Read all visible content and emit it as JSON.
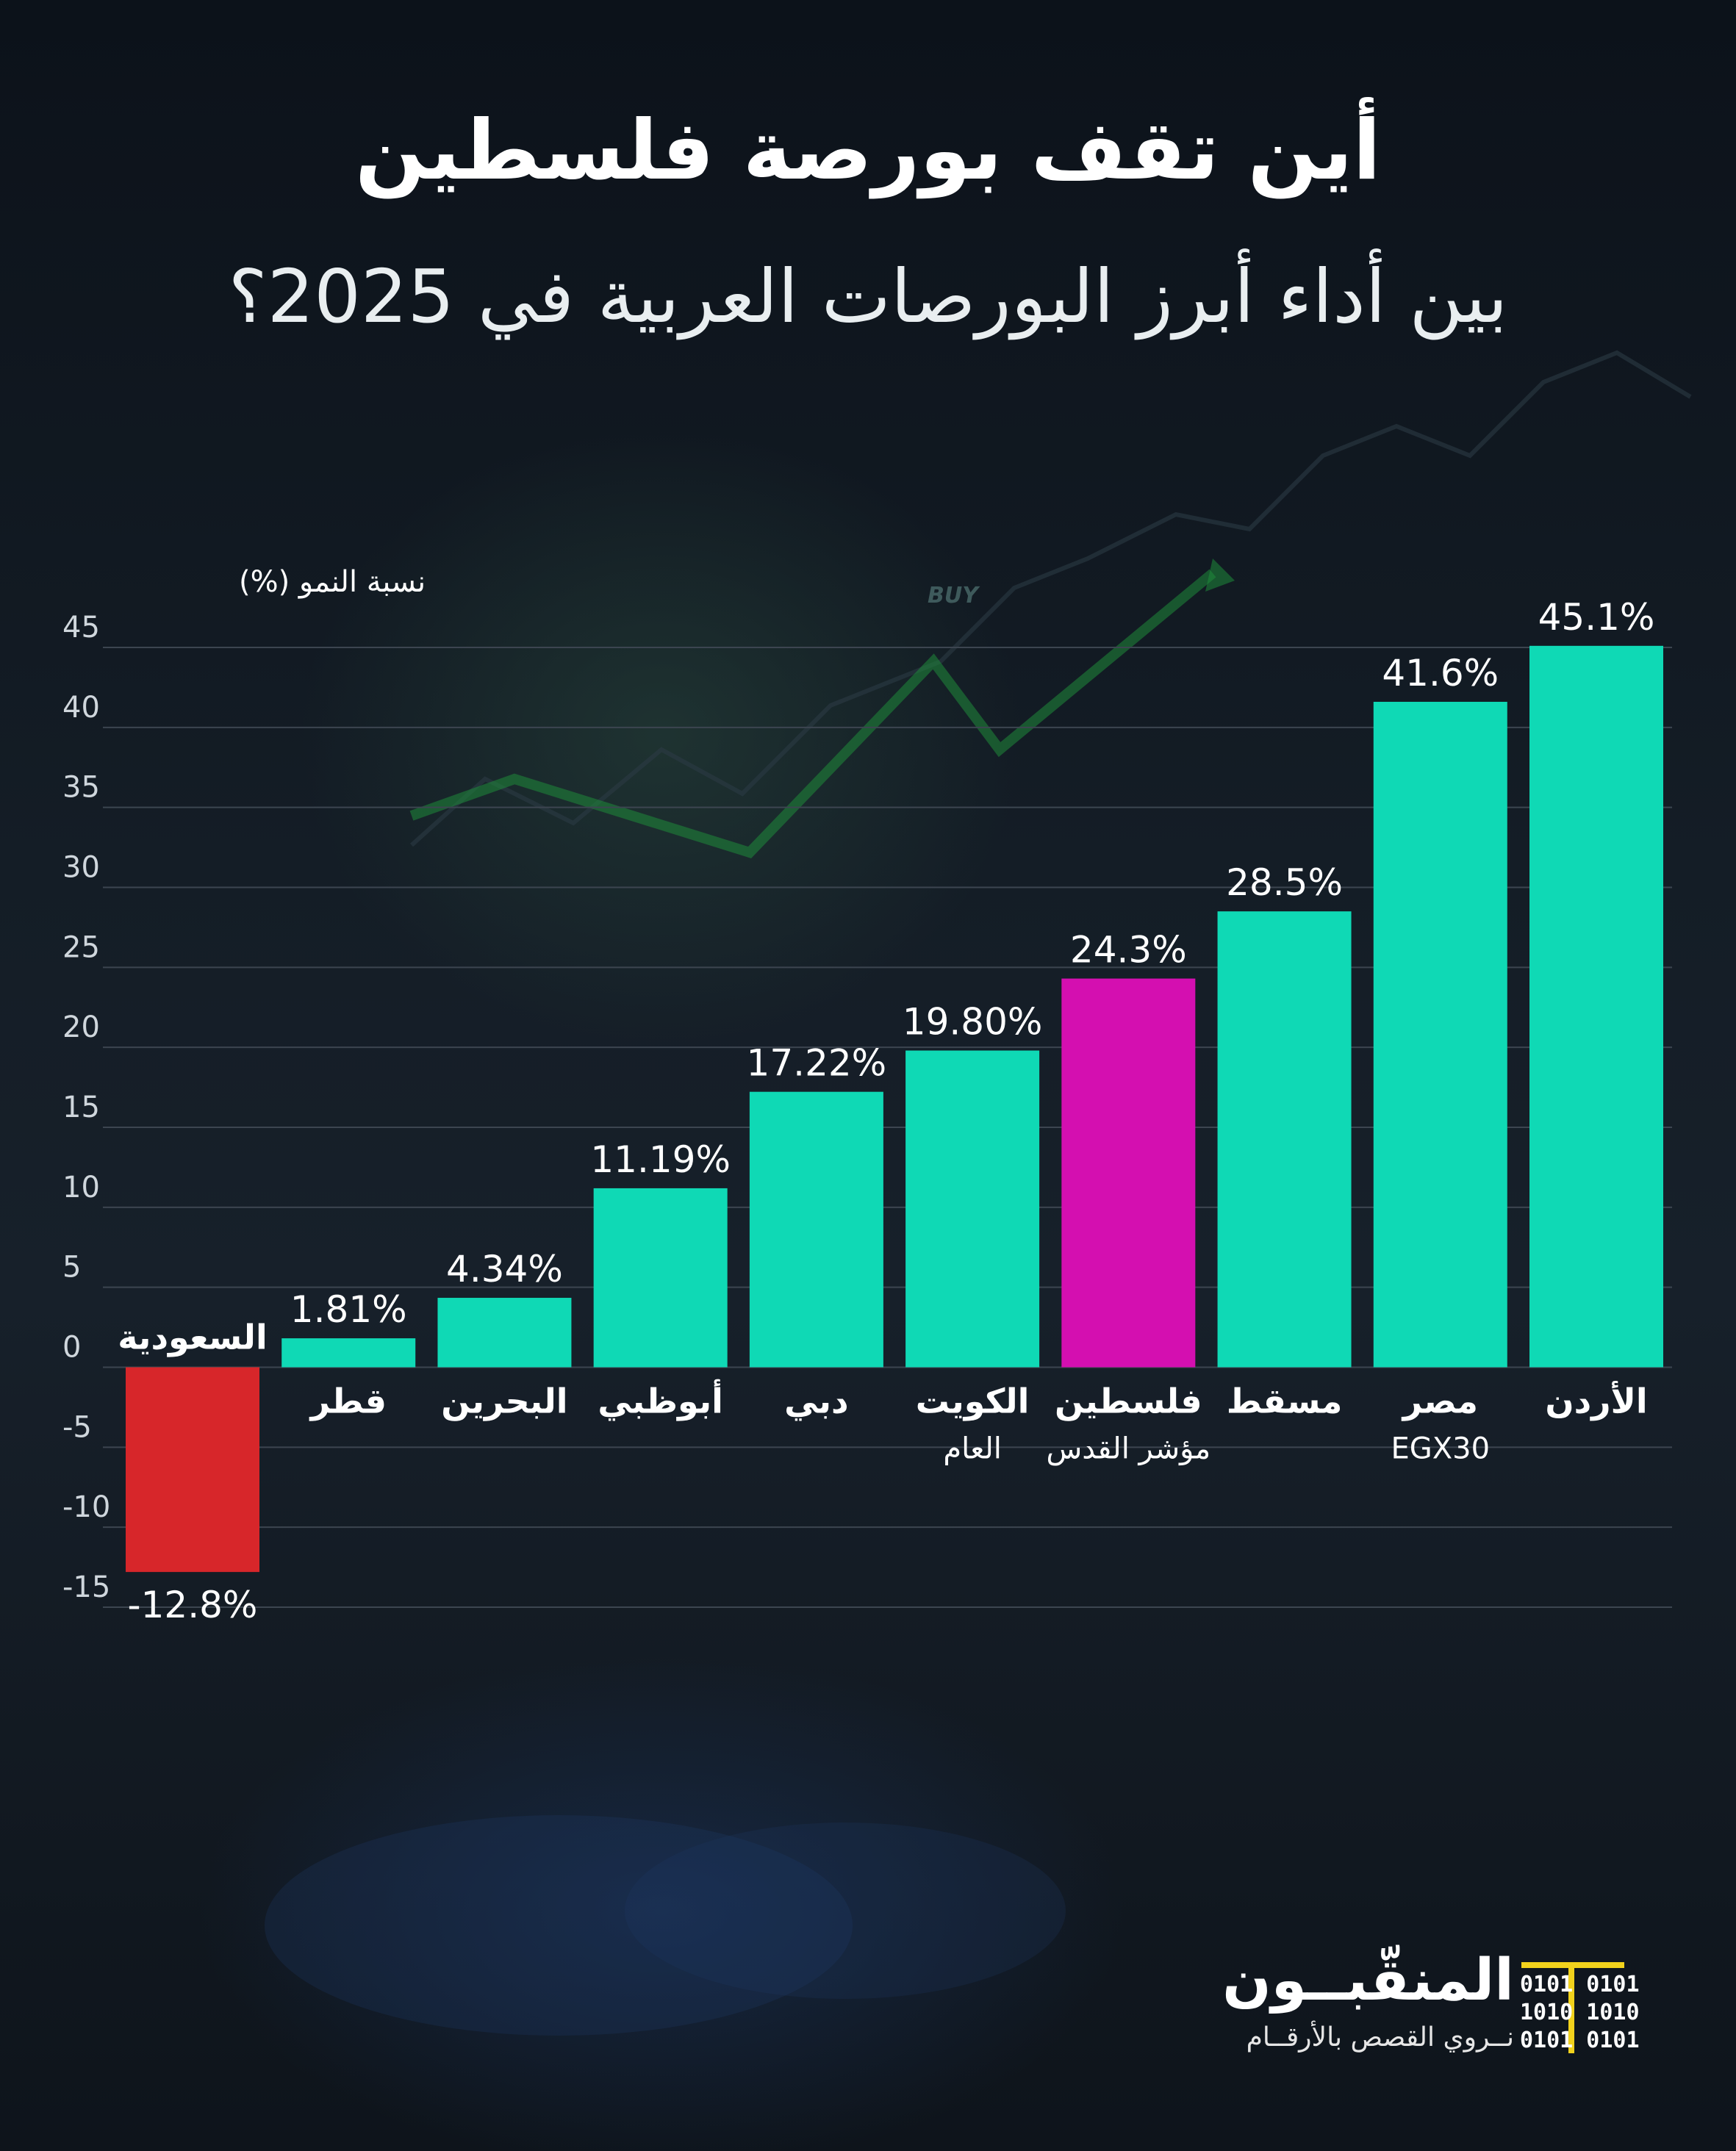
{
  "header": {
    "title": "أين تقف بورصة فلسطين",
    "subtitle": "بين أداء أبرز البورصات العربية في 2025؟"
  },
  "colors": {
    "positive": "#0fd9b5",
    "palestine": "#d40fb0",
    "negative": "#d7262a",
    "grid": "#3c4550",
    "tick_text": "#cfd6dc"
  },
  "chart_data": {
    "type": "bar",
    "ylabel": "نسبة النمو (%)",
    "ylim": [
      -15,
      45
    ],
    "yticks": [
      45,
      40,
      35,
      30,
      25,
      20,
      15,
      10,
      5,
      0,
      -5,
      -10,
      -15
    ],
    "grid": true,
    "categories": [
      "السعودية",
      "قطر",
      "البحرين",
      "أبوظبي",
      "دبي",
      "الكويت",
      "فلسطين",
      "مسقط",
      "مصر",
      "الأردن"
    ],
    "sublabels": [
      "",
      "",
      "",
      "",
      "",
      "العام",
      "مؤشر القدس",
      "",
      "EGX30",
      ""
    ],
    "values": [
      -12.8,
      1.81,
      4.34,
      11.19,
      17.22,
      19.8,
      24.3,
      28.5,
      41.6,
      45.1
    ],
    "value_labels": [
      "-12.8%",
      "1.81%",
      "4.34%",
      "11.19%",
      "17.22%",
      "19.80%",
      "24.3%",
      "28.5%",
      "41.6%",
      "45.1%"
    ],
    "highlight": "فلسطين"
  },
  "logo": {
    "name": "المنقّبــون",
    "tagline": "نــروي القصص بالأرقــام",
    "bits": "0101 0101\n1010 1010\n0101 0101",
    "accent": "#f2d21c"
  }
}
